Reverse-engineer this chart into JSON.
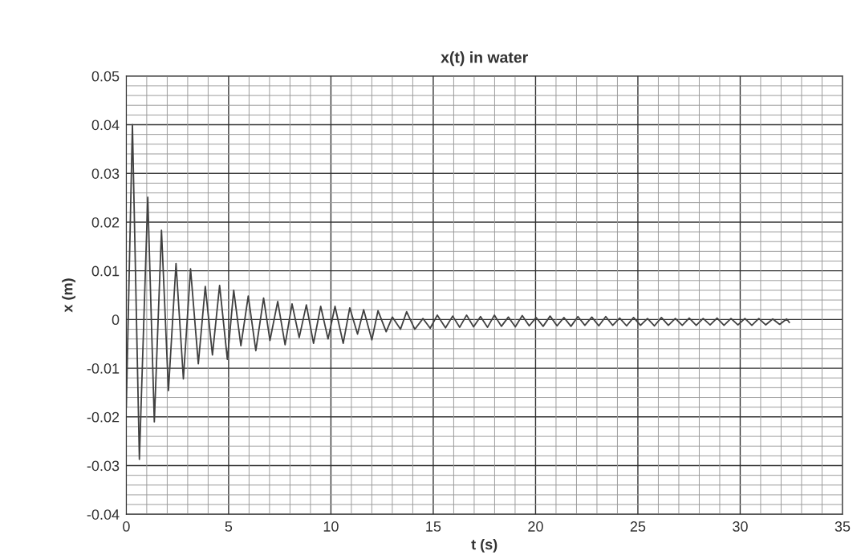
{
  "chart_data": {
    "type": "line",
    "title": "x(t) in water",
    "xlabel": "t (s)",
    "ylabel": "x (m)",
    "series": [
      {
        "color": "#404040",
        "x": [
          0,
          0.3,
          0.64,
          1.05,
          1.37,
          1.72,
          2.06,
          2.43,
          2.79,
          3.14,
          3.52,
          3.86,
          4.21,
          4.56,
          4.94,
          5.25,
          5.6,
          5.96,
          6.33,
          6.71,
          7.02,
          7.4,
          7.76,
          8.1,
          8.45,
          8.8,
          9.15,
          9.5,
          9.86,
          10.2,
          10.6,
          10.92,
          11.3,
          11.6,
          12.0,
          12.3,
          12.7,
          13.0,
          13.4,
          13.7,
          14.1,
          14.5,
          14.85,
          15.2,
          15.6,
          15.95,
          16.29,
          16.63,
          16.97,
          17.31,
          17.65,
          17.99,
          18.33,
          18.67,
          19.01,
          19.35,
          19.69,
          20.03,
          20.37,
          20.71,
          21.05,
          21.39,
          21.73,
          22.07,
          22.41,
          22.75,
          23.09,
          23.43,
          23.77,
          24.11,
          24.45,
          24.79,
          25.13,
          25.47,
          25.81,
          26.15,
          26.49,
          26.83,
          27.17,
          27.51,
          27.85,
          28.19,
          28.53,
          28.87,
          29.21,
          29.55,
          29.89,
          30.23,
          30.57,
          30.91,
          31.25,
          31.59,
          31.93,
          32.27,
          32.4
        ],
        "values": [
          -0.018,
          0.04,
          -0.0287,
          0.0251,
          -0.021,
          0.0183,
          -0.0146,
          0.0115,
          -0.0122,
          0.0104,
          -0.0091,
          0.0068,
          -0.0073,
          0.007,
          -0.0082,
          0.006,
          -0.0054,
          0.0048,
          -0.0064,
          0.0044,
          -0.0043,
          0.0037,
          -0.0052,
          0.0032,
          -0.0037,
          0.003,
          -0.0049,
          0.0027,
          -0.004,
          0.0027,
          -0.0049,
          0.0024,
          -0.003,
          0.002,
          -0.0042,
          0.0018,
          -0.0025,
          0.0005,
          -0.002,
          0.0016,
          -0.002,
          0.0002,
          -0.0018,
          0.0009,
          -0.0017,
          0.0007,
          -0.0016,
          0.0009,
          -0.0015,
          0.0006,
          -0.0016,
          0.0009,
          -0.0014,
          0.0005,
          -0.0015,
          0.0008,
          -0.0013,
          0.0004,
          -0.0014,
          0.0007,
          -0.0013,
          0.0004,
          -0.0014,
          0.0006,
          -0.0012,
          0.0005,
          -0.0013,
          0.0006,
          -0.0012,
          0.0003,
          -0.0013,
          0.0004,
          -0.0012,
          0.0002,
          -0.0013,
          0.0004,
          -0.0012,
          0.0002,
          -0.0012,
          0.0003,
          -0.0012,
          0.0002,
          -0.0011,
          0.0003,
          -0.0012,
          0.0002,
          -0.0011,
          0.0002,
          -0.0012,
          0.0002,
          -0.0011,
          0.0001,
          -0.001,
          0.0001,
          -0.0006
        ]
      }
    ],
    "xlim": [
      0,
      35
    ],
    "xticks": [
      0,
      5,
      10,
      15,
      20,
      25,
      30,
      35
    ],
    "ylim": [
      -0.04,
      0.05
    ],
    "yticks": [
      {
        "value": -0.04,
        "label": "-0.04"
      },
      {
        "value": -0.03,
        "label": "-0.03"
      },
      {
        "value": -0.02,
        "label": "-0.02"
      },
      {
        "value": -0.01,
        "label": "-0.01"
      },
      {
        "value": 0,
        "label": "0"
      },
      {
        "value": 0.01,
        "label": "0.01"
      },
      {
        "value": 0.02,
        "label": "0.02"
      },
      {
        "value": 0.03,
        "label": "0.03"
      },
      {
        "value": 0.04,
        "label": "0.04"
      },
      {
        "value": 0.05,
        "label": "0.05"
      }
    ],
    "grid": true,
    "marker": "none",
    "line_style": "solid"
  }
}
